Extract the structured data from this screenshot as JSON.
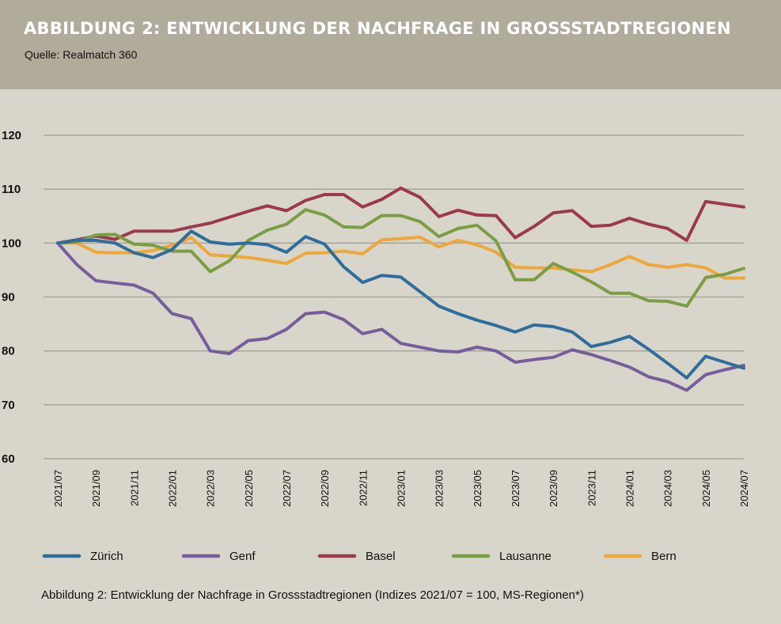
{
  "header": {
    "title": "ABBILDUNG 2: ENTWICKLUNG DER NACHFRAGE IN GROSSSTADTREGIONEN",
    "source": "Quelle: Realmatch 360"
  },
  "caption": "Abbildung 2: Entwicklung der Nachfrage in Grossstadtregionen (Indizes 2021/07 = 100, MS-Regionen*)",
  "colors": {
    "header_bg": "#b0ab9b",
    "chart_bg": "#d8d6ca",
    "grid": "#a9a69b",
    "Zürich": "#2f6e9c",
    "Genf": "#765e9d",
    "Basel": "#9c3a4b",
    "Lausanne": "#7c9e42",
    "Bern": "#eda73a"
  },
  "chart_data": {
    "type": "line",
    "title": "ABBILDUNG 2: ENTWICKLUNG DER NACHFRAGE IN GROSSSTADTREGIONEN",
    "ylim": [
      60,
      120
    ],
    "yticks": [
      60,
      70,
      80,
      90,
      100,
      110,
      120
    ],
    "grid": true,
    "legend_position": "bottom",
    "x_tick_labels": [
      "2021/07",
      "2021/09",
      "2021/11",
      "2022/01",
      "2022/03",
      "2022/05",
      "2022/07",
      "2022/09",
      "2022/11",
      "2023/01",
      "2023/03",
      "2023/05",
      "2023/07",
      "2023/09",
      "2023/11",
      "2024/01",
      "2024/03",
      "2024/05",
      "2024/07"
    ],
    "x": [
      "2021/07",
      "2021/08",
      "2021/09",
      "2021/10",
      "2021/11",
      "2021/12",
      "2022/01",
      "2022/02",
      "2022/03",
      "2022/04",
      "2022/05",
      "2022/06",
      "2022/07",
      "2022/08",
      "2022/09",
      "2022/10",
      "2022/11",
      "2022/12",
      "2023/01",
      "2023/02",
      "2023/03",
      "2023/04",
      "2023/05",
      "2023/06",
      "2023/07",
      "2023/08",
      "2023/09",
      "2023/10",
      "2023/11",
      "2023/12",
      "2024/01",
      "2024/02",
      "2024/03",
      "2024/04",
      "2024/05",
      "2024/06",
      "2024/07"
    ],
    "series": [
      {
        "name": "Zürich",
        "values": [
          100,
          100.5,
          100.5,
          100.0,
          98.2,
          97.3,
          98.8,
          102.2,
          100.2,
          99.8,
          100.0,
          99.7,
          98.3,
          101.2,
          99.8,
          95.6,
          92.7,
          94.0,
          93.7,
          91.0,
          88.3,
          86.9,
          85.7,
          84.7,
          83.5,
          84.8,
          84.5,
          83.5,
          80.8,
          81.6,
          82.7,
          80.3,
          77.7,
          75.0,
          79.0,
          77.9,
          76.8
        ]
      },
      {
        "name": "Genf",
        "values": [
          100,
          96.0,
          93.0,
          92.6,
          92.2,
          90.7,
          86.9,
          86.0,
          80.0,
          79.5,
          81.9,
          82.3,
          84.0,
          86.9,
          87.2,
          85.8,
          83.2,
          84.0,
          81.4,
          80.7,
          80.0,
          79.8,
          80.7,
          80.0,
          77.9,
          78.4,
          78.8,
          80.2,
          79.3,
          78.2,
          77.0,
          75.2,
          74.3,
          72.7,
          75.6,
          76.5,
          77.3
        ]
      },
      {
        "name": "Basel",
        "values": [
          100,
          100.6,
          101.3,
          100.7,
          102.2,
          102.2,
          102.2,
          103.0,
          103.7,
          104.8,
          105.9,
          106.9,
          106.0,
          107.9,
          109.0,
          109.0,
          106.7,
          108.1,
          110.2,
          108.5,
          104.9,
          106.1,
          105.2,
          105.1,
          101.0,
          103.1,
          105.6,
          106.0,
          103.1,
          103.3,
          104.6,
          103.5,
          102.7,
          100.5,
          107.7,
          107.2,
          106.7
        ]
      },
      {
        "name": "Lausanne",
        "values": [
          100,
          100.2,
          101.5,
          101.6,
          99.8,
          99.6,
          98.5,
          98.5,
          94.7,
          96.7,
          100.5,
          102.4,
          103.5,
          106.2,
          105.2,
          103.0,
          102.9,
          105.1,
          105.1,
          104.0,
          101.2,
          102.7,
          103.3,
          100.4,
          93.2,
          93.2,
          96.2,
          94.6,
          92.8,
          90.7,
          90.7,
          89.3,
          89.2,
          88.3,
          93.6,
          94.2,
          95.3
        ]
      },
      {
        "name": "Bern",
        "values": [
          100,
          100.0,
          98.3,
          98.2,
          98.2,
          98.6,
          99.6,
          101.0,
          97.8,
          97.6,
          97.3,
          96.8,
          96.2,
          98.1,
          98.2,
          98.5,
          98.0,
          100.6,
          100.8,
          101.1,
          99.3,
          100.5,
          99.7,
          98.3,
          95.5,
          95.4,
          95.4,
          95.0,
          94.7,
          96.0,
          97.5,
          96.0,
          95.5,
          96.0,
          95.4,
          93.5,
          93.5
        ]
      }
    ]
  }
}
